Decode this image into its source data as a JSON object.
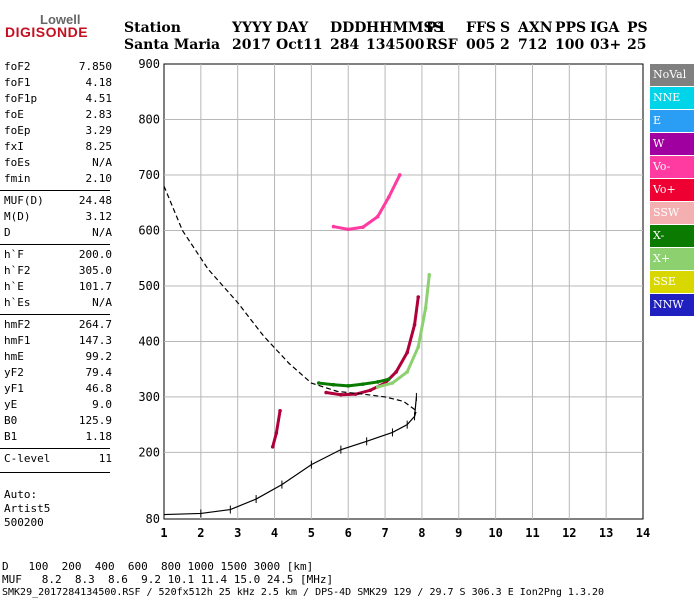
{
  "logo": {
    "top": "Lowell",
    "bottom": "DIGISONDE"
  },
  "header": {
    "labels": [
      "Station",
      "YYYY",
      "DAY",
      "DDD",
      "HHMMSS",
      "P1",
      "FFS",
      "S",
      "AXN",
      "PPS",
      "IGA",
      "PS"
    ],
    "values": [
      "Santa Maria",
      "2017",
      "Oct11",
      "284",
      "134500",
      "RSF",
      "005",
      "2",
      "712",
      "100",
      "03+",
      "25"
    ]
  },
  "params": [
    {
      "label": "foF2",
      "value": "7.850"
    },
    {
      "label": "foF1",
      "value": "4.18"
    },
    {
      "label": "foF1p",
      "value": "4.51"
    },
    {
      "label": "foE",
      "value": "2.83"
    },
    {
      "label": "foEp",
      "value": "3.29"
    },
    {
      "label": "fxI",
      "value": "8.25"
    },
    {
      "label": "foEs",
      "value": "N/A"
    },
    {
      "label": "fmin",
      "value": "2.10"
    },
    {
      "label": "MUF(D)",
      "value": "24.48"
    },
    {
      "label": "M(D)",
      "value": "3.12"
    },
    {
      "label": "D",
      "value": "N/A"
    },
    {
      "label": "h`F",
      "value": "200.0"
    },
    {
      "label": "h`F2",
      "value": "305.0"
    },
    {
      "label": "h`E",
      "value": "101.7"
    },
    {
      "label": "h`Es",
      "value": "N/A"
    },
    {
      "label": "hmF2",
      "value": "264.7"
    },
    {
      "label": "hmF1",
      "value": "147.3"
    },
    {
      "label": "hmE",
      "value": "99.2"
    },
    {
      "label": "yF2",
      "value": "79.4"
    },
    {
      "label": "yF1",
      "value": "46.8"
    },
    {
      "label": "yE",
      "value": "9.0"
    },
    {
      "label": "B0",
      "value": "125.9"
    },
    {
      "label": "B1",
      "value": "1.18"
    },
    {
      "label": "C-level",
      "value": "11"
    }
  ],
  "scaling": {
    "label": "Auto:",
    "method": "Artist5",
    "code": "500200"
  },
  "legend": [
    {
      "label": "NoVal",
      "bg": "#808080",
      "fg": "#ffffff"
    },
    {
      "label": "NNE",
      "bg": "#00d4e8",
      "fg": "#ffffff"
    },
    {
      "label": "E",
      "bg": "#2a9df4",
      "fg": "#ffffff"
    },
    {
      "label": "W",
      "bg": "#a000a0",
      "fg": "#ffffff"
    },
    {
      "label": "Vo-",
      "bg": "#ff3aa0",
      "fg": "#ffffff"
    },
    {
      "label": "Vo+",
      "bg": "#ee0033",
      "fg": "#ffffff"
    },
    {
      "label": "SSW",
      "bg": "#f4b0b0",
      "fg": "#ffffff"
    },
    {
      "label": "X-",
      "bg": "#0a7a00",
      "fg": "#ffffff"
    },
    {
      "label": "X+",
      "bg": "#8cd070",
      "fg": "#ffffff"
    },
    {
      "label": "SSE",
      "bg": "#d8d800",
      "fg": "#ffffff"
    },
    {
      "label": "NNW",
      "bg": "#2020c0",
      "fg": "#ffffff"
    }
  ],
  "bottom": {
    "d_label": "D",
    "d_values": "100  200  400  600  800 1000 1500 3000 [km]",
    "muf_label": "MUF",
    "muf_values": "8.2  8.3  8.6  9.2 10.1 11.4 15.0 24.5 [MHz]",
    "footer": "SMK29_2017284134500.RSF / 520fx512h 25 kHz 2.5 km / DPS-4D SMK29 129 / 29.7 S 306.3 E Ion2Png 1.3.20"
  },
  "chart_data": {
    "type": "scatter",
    "xlabel": "",
    "ylabel": "",
    "xlim": [
      1,
      14
    ],
    "ylim": [
      80,
      900
    ],
    "x_ticks": [
      "1",
      "2",
      "3",
      "4",
      "5",
      "6",
      "7",
      "8",
      "9",
      "10",
      "11",
      "12",
      "13",
      "14"
    ],
    "y_ticks": [
      "80",
      "200",
      "300",
      "400",
      "500",
      "600",
      "700",
      "800",
      "900"
    ],
    "grid": true,
    "series": [
      {
        "name": "Vo+",
        "color": "#b0003a",
        "x": [
          5.4,
          5.8,
          6.2,
          6.6,
          7.0,
          7.3,
          7.6,
          7.8,
          7.9
        ],
        "y": [
          308,
          304,
          305,
          312,
          325,
          345,
          380,
          430,
          480
        ]
      },
      {
        "name": "X+",
        "color": "#8cd070",
        "x": [
          6.8,
          7.2,
          7.6,
          7.9,
          8.1,
          8.2
        ],
        "y": [
          318,
          325,
          345,
          390,
          460,
          520
        ]
      },
      {
        "name": "X-",
        "color": "#0a7a00",
        "x": [
          5.2,
          5.6,
          6.0,
          6.4,
          6.8,
          7.1
        ],
        "y": [
          325,
          322,
          320,
          323,
          327,
          332
        ]
      },
      {
        "name": "Vo-",
        "color": "#ff3aa0",
        "x": [
          5.6,
          6.0,
          6.4,
          6.8,
          7.1,
          7.4
        ],
        "y": [
          607,
          602,
          606,
          625,
          660,
          700
        ]
      },
      {
        "name": "Vo+ (E)",
        "color": "#b0003a",
        "x": [
          3.95,
          4.05,
          4.15
        ],
        "y": [
          210,
          235,
          275
        ]
      },
      {
        "name": "h'(f) profile",
        "color": "#000000",
        "x": [
          1.0,
          2.0,
          2.8,
          3.5,
          4.2,
          5.0,
          5.8,
          6.5,
          7.2,
          7.6,
          7.8,
          7.85
        ],
        "y": [
          88,
          90,
          97,
          116,
          142,
          178,
          205,
          220,
          236,
          250,
          265,
          300
        ]
      },
      {
        "name": "model trace",
        "color": "#000000",
        "x": [
          1.0,
          1.5,
          2.2,
          3.0,
          3.7,
          4.4,
          5.0,
          5.7,
          6.4,
          7.0,
          7.5,
          7.85,
          7.8
        ],
        "y": [
          680,
          600,
          530,
          470,
          410,
          360,
          325,
          310,
          305,
          300,
          292,
          275,
          265
        ]
      }
    ]
  }
}
